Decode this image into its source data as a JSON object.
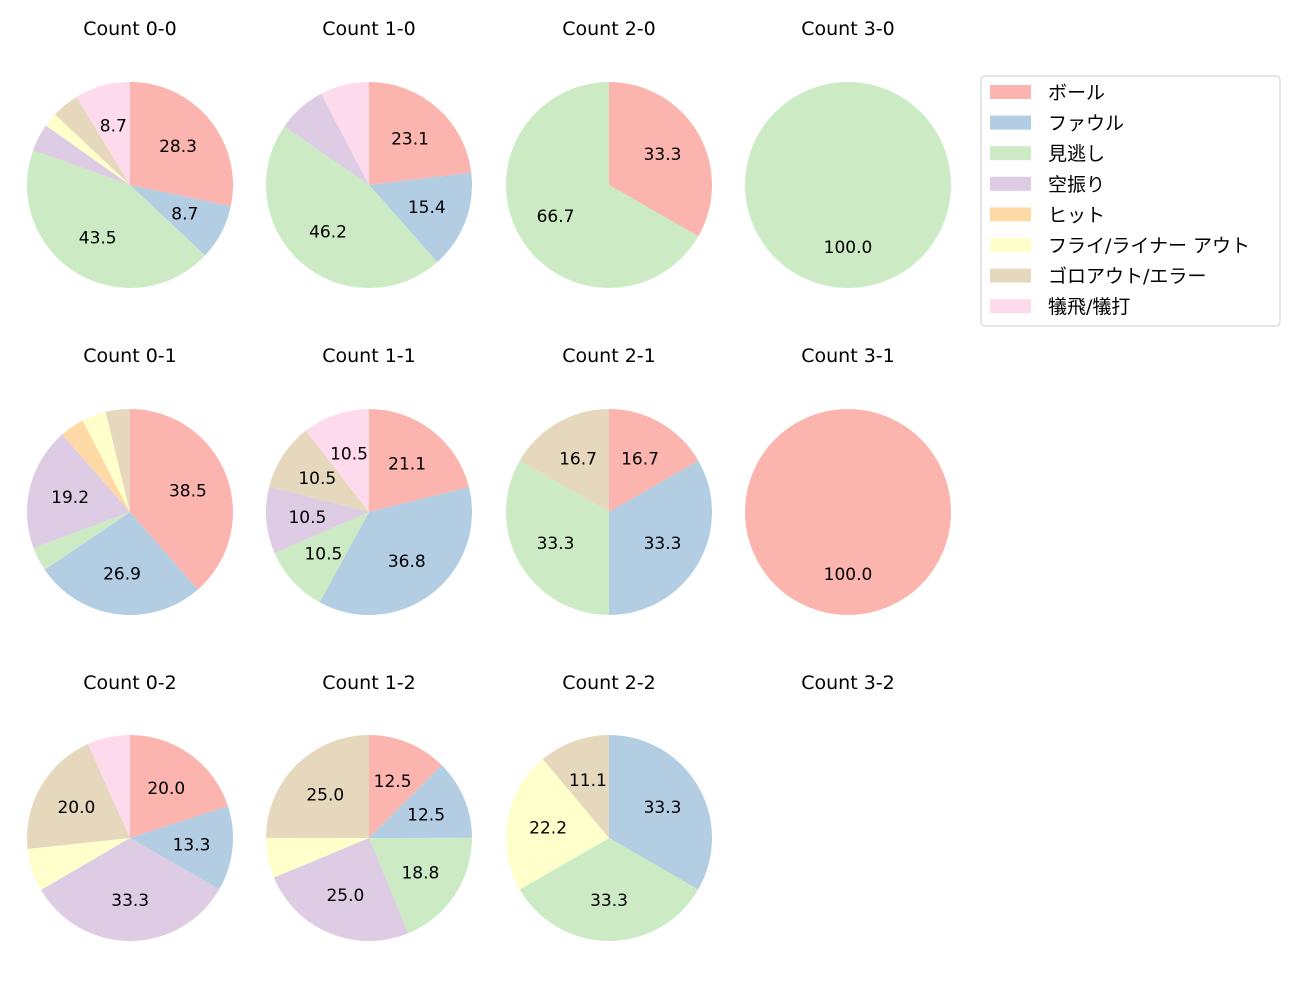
{
  "chart_data": {
    "type": "pie",
    "categories": [
      "ボール",
      "ファウル",
      "見逃し",
      "空振り",
      "ヒット",
      "フライ/ライナー アウト",
      "ゴロアウト/エラー",
      "犠飛/犠打"
    ],
    "colors": [
      "#fbb4ae",
      "#b3cde3",
      "#ccebc5",
      "#decbe4",
      "#fed9a6",
      "#ffffcc",
      "#e5d8bd",
      "#fddaec"
    ],
    "legend_position": "right",
    "charts": [
      {
        "title": "Count 0-0",
        "values": [
          28.3,
          8.7,
          43.5,
          4.3,
          0,
          2.2,
          4.3,
          8.7
        ],
        "labels": [
          "28.3",
          "8.7",
          "43.5",
          "",
          "",
          "",
          "",
          "8.7"
        ]
      },
      {
        "title": "Count 1-0",
        "values": [
          23.1,
          15.4,
          46.2,
          7.7,
          0,
          0,
          0,
          7.7
        ],
        "labels": [
          "23.1",
          "15.4",
          "46.2",
          "",
          "",
          "",
          "",
          ""
        ]
      },
      {
        "title": "Count 2-0",
        "values": [
          33.3,
          0,
          66.7,
          0,
          0,
          0,
          0,
          0
        ],
        "labels": [
          "33.3",
          "",
          "66.7",
          "",
          "",
          "",
          "",
          ""
        ]
      },
      {
        "title": "Count 3-0",
        "values": [
          0,
          0,
          100.0,
          0,
          0,
          0,
          0,
          0
        ],
        "labels": [
          "",
          "",
          "100.0",
          "",
          "",
          "",
          "",
          ""
        ]
      },
      {
        "title": "Count 0-1",
        "values": [
          38.5,
          26.9,
          3.8,
          19.2,
          3.8,
          3.8,
          3.8,
          0
        ],
        "labels": [
          "38.5",
          "26.9",
          "",
          "19.2",
          "",
          "",
          "",
          ""
        ]
      },
      {
        "title": "Count 1-1",
        "values": [
          21.1,
          36.8,
          10.5,
          10.5,
          0,
          0,
          10.5,
          10.5
        ],
        "labels": [
          "21.1",
          "36.8",
          "10.5",
          "10.5",
          "",
          "",
          "10.5",
          "10.5"
        ]
      },
      {
        "title": "Count 2-1",
        "values": [
          16.7,
          33.3,
          33.3,
          0,
          0,
          0,
          16.7,
          0
        ],
        "labels": [
          "16.7",
          "33.3",
          "33.3",
          "",
          "",
          "",
          "16.7",
          ""
        ]
      },
      {
        "title": "Count 3-1",
        "values": [
          100.0,
          0,
          0,
          0,
          0,
          0,
          0,
          0
        ],
        "labels": [
          "100.0",
          "",
          "",
          "",
          "",
          "",
          "",
          ""
        ]
      },
      {
        "title": "Count 0-2",
        "values": [
          20.0,
          13.3,
          0,
          33.3,
          0,
          6.7,
          20.0,
          6.7
        ],
        "labels": [
          "20.0",
          "13.3",
          "",
          "33.3",
          "",
          "",
          "20.0",
          ""
        ]
      },
      {
        "title": "Count 1-2",
        "values": [
          12.5,
          12.5,
          18.8,
          25.0,
          0,
          6.3,
          25.0,
          0
        ],
        "labels": [
          "12.5",
          "12.5",
          "18.8",
          "25.0",
          "",
          "",
          "25.0",
          ""
        ]
      },
      {
        "title": "Count 2-2",
        "values": [
          0,
          33.3,
          33.3,
          0,
          0,
          22.2,
          11.1,
          0
        ],
        "labels": [
          "",
          "33.3",
          "33.3",
          "",
          "",
          "22.2",
          "11.1",
          ""
        ]
      },
      {
        "title": "Count 3-2",
        "values": [],
        "labels": []
      }
    ]
  }
}
